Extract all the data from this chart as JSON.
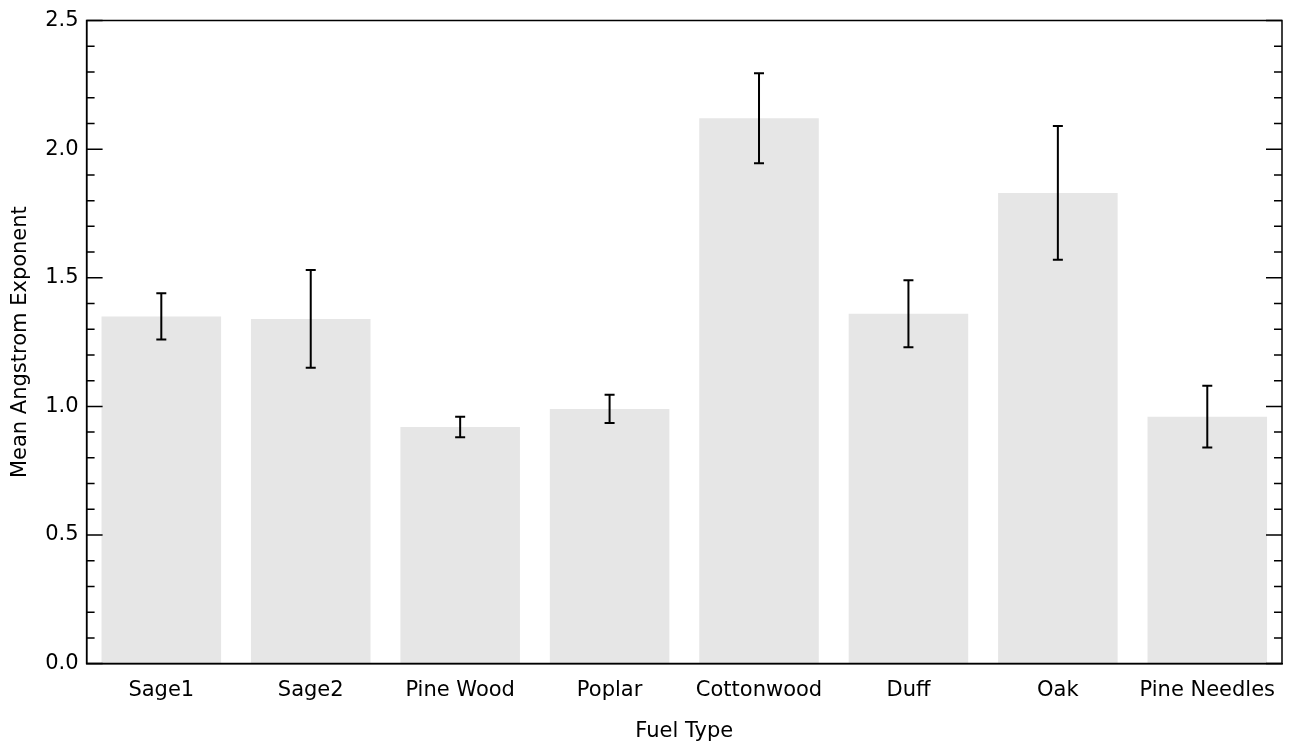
{
  "chart_data": {
    "type": "bar",
    "xlabel": "Fuel Type",
    "ylabel": "Mean Angstrom Exponent",
    "categories": [
      "Sage1",
      "Sage2",
      "Pine Wood",
      "Poplar",
      "Cottonwood",
      "Duff",
      "Oak",
      "Pine Needles"
    ],
    "values": [
      1.35,
      1.34,
      0.92,
      0.99,
      2.12,
      1.36,
      1.83,
      0.96
    ],
    "errors": [
      0.09,
      0.19,
      0.04,
      0.055,
      0.175,
      0.13,
      0.26,
      0.12
    ],
    "color": "#e6e6e6",
    "ylim": [
      0,
      2.5
    ],
    "yticks": [
      {
        "value": 0,
        "label": "0.0"
      },
      {
        "value": 0.1,
        "label": null
      },
      {
        "value": 0.2,
        "label": null
      },
      {
        "value": 0.3,
        "label": null
      },
      {
        "value": 0.4,
        "label": null
      },
      {
        "value": 0.5,
        "label": "0.5"
      },
      {
        "value": 0.6,
        "label": null
      },
      {
        "value": 0.7,
        "label": null
      },
      {
        "value": 0.8,
        "label": null
      },
      {
        "value": 0.9,
        "label": null
      },
      {
        "value": 1,
        "label": "1.0"
      },
      {
        "value": 1.1,
        "label": null
      },
      {
        "value": 1.2,
        "label": null
      },
      {
        "value": 1.3,
        "label": null
      },
      {
        "value": 1.4,
        "label": null
      },
      {
        "value": 1.5,
        "label": "1.5"
      },
      {
        "value": 1.6,
        "label": null
      },
      {
        "value": 1.7,
        "label": null
      },
      {
        "value": 1.8,
        "label": null
      },
      {
        "value": 1.9,
        "label": null
      },
      {
        "value": 2,
        "label": "2.0"
      },
      {
        "value": 2.1,
        "label": null
      },
      {
        "value": 2.2,
        "label": null
      },
      {
        "value": 2.3,
        "label": null
      },
      {
        "value": 2.4,
        "label": null
      },
      {
        "value": 2.5,
        "label": "2.5"
      }
    ],
    "grid": false,
    "legend": false
  }
}
